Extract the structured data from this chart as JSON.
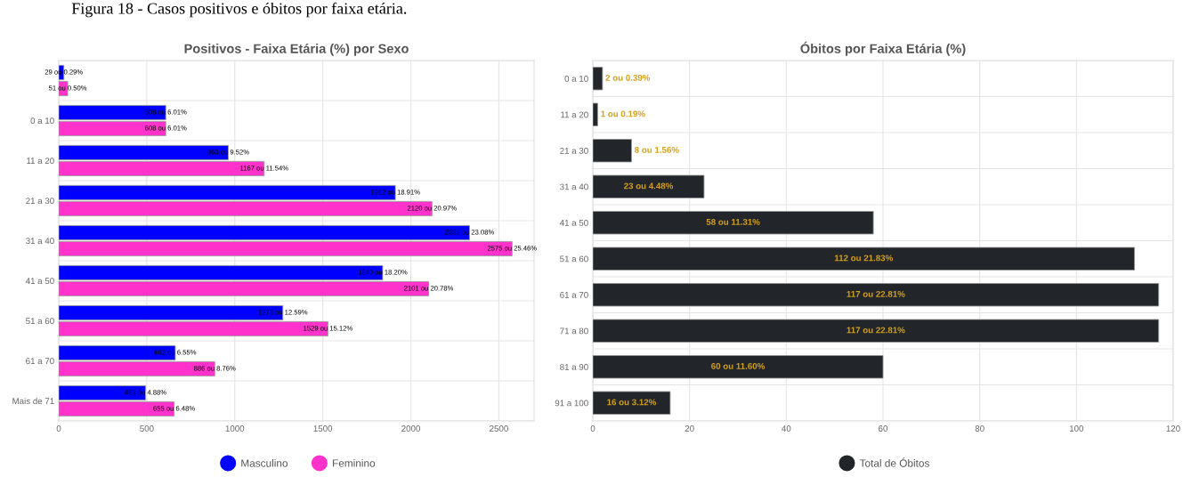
{
  "chart_data": [
    {
      "type": "bar",
      "orientation": "horizontal",
      "title": "Positivos - Faixa Etária (%) por Sexo",
      "annotations": [
        "Figura 18 - Casos positivos e óbitos por faixa etária."
      ],
      "categories": [
        null,
        "0 a 10",
        "11 a 20",
        "21 a 30",
        "31 a 40",
        "41 a 50",
        "51 a 60",
        "61 a 70",
        "Mais de 71"
      ],
      "series": [
        {
          "name": "Masculino",
          "color": "#0000ff",
          "values": [
            29,
            608,
            963,
            1912,
            2333,
            1840,
            1273,
            662,
            493
          ],
          "value_labels": [
            "29 ou 0.29%",
            "608 ou 6.01%",
            "963 ou 9.52%",
            "1912 ou 18.91%",
            "2333 ou 23.08%",
            "1840 ou 18.20%",
            "1273 ou 12.59%",
            "662 ou 6.55%",
            "493 ou 4.88%"
          ]
        },
        {
          "name": "Feminino",
          "color": "#ff33cc",
          "values": [
            51,
            608,
            1167,
            2120,
            2575,
            2101,
            1529,
            886,
            655
          ],
          "value_labels": [
            "51 ou 0.50%",
            "608 ou 6.01%",
            "1167 ou 11.54%",
            "2120 ou 20.97%",
            "2575 ou 25.46%",
            "2101 ou 20.78%",
            "1529 ou 15.12%",
            "886 ou 8.76%",
            "655 ou 6.48%"
          ]
        }
      ],
      "xlim": [
        0,
        2700
      ],
      "xticks": [
        0,
        500,
        1000,
        1500,
        2000,
        2500
      ],
      "grid": true,
      "legend": "bottom"
    },
    {
      "type": "bar",
      "orientation": "horizontal",
      "title": "Óbitos por Faixa Etária (%)",
      "categories": [
        "0 a 10",
        "11 a 20",
        "21 a 30",
        "31 a 40",
        "41 a 50",
        "51 a 60",
        "61 a 70",
        "71 a 80",
        "81 a 90",
        "91 a 100"
      ],
      "series": [
        {
          "name": "Total de Óbitos",
          "color": "#222529",
          "values": [
            2,
            1,
            8,
            23,
            58,
            112,
            117,
            117,
            60,
            16
          ],
          "value_labels": [
            "2 ou 0.39%",
            "1 ou 0.19%",
            "8 ou 1.56%",
            "23 ou 4.48%",
            "58 ou 11.31%",
            "112 ou 21.83%",
            "117 ou 22.81%",
            "117 ou 22.81%",
            "60 ou 11.60%",
            "16 ou 3.12%"
          ]
        }
      ],
      "xlim": [
        0,
        120
      ],
      "xticks": [
        0,
        20,
        40,
        60,
        80,
        100,
        120
      ],
      "grid": true,
      "legend": "bottom"
    }
  ]
}
